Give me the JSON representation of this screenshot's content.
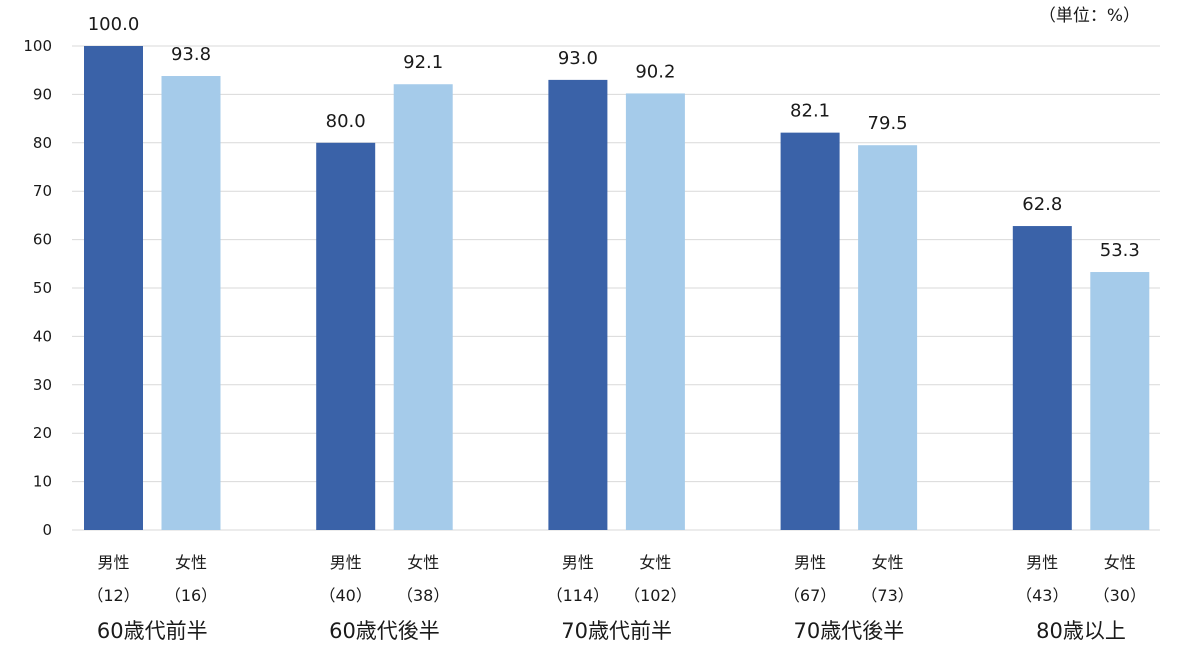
{
  "unit_label": "（単位：%）",
  "colors": {
    "male": "#3a62a8",
    "female": "#a5cbea"
  },
  "chart_data": {
    "type": "bar",
    "categories": [
      "60歳代前半",
      "60歳代後半",
      "70歳代前半",
      "70歳代後半",
      "80歳以上"
    ],
    "ylim": [
      0,
      100
    ],
    "yticks": [
      0,
      10,
      20,
      30,
      40,
      50,
      60,
      70,
      80,
      90,
      100
    ],
    "grid": true,
    "series": [
      {
        "name": "男性",
        "values": [
          100.0,
          80.0,
          93.0,
          82.1,
          62.8
        ],
        "labels": [
          "100.0",
          "80.0",
          "93.0",
          "82.1",
          "62.8"
        ],
        "counts": [
          "（12）",
          "（40）",
          "（114）",
          "（67）",
          "（43）"
        ]
      },
      {
        "name": "女性",
        "values": [
          93.8,
          92.1,
          90.2,
          79.5,
          53.3
        ],
        "labels": [
          "93.8",
          "92.1",
          "90.2",
          "79.5",
          "53.3"
        ],
        "counts": [
          "（16）",
          "（38）",
          "（102）",
          "（73）",
          "（30）"
        ]
      }
    ]
  }
}
